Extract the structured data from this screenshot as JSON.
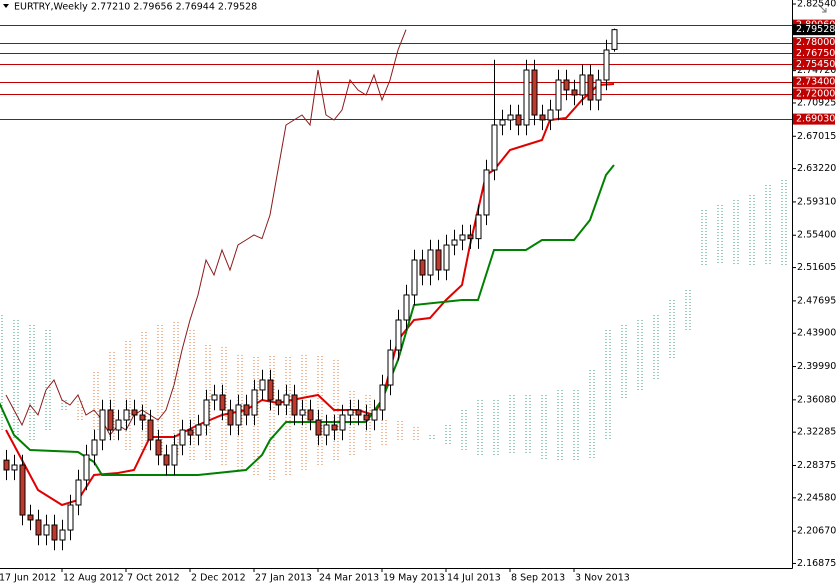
{
  "chart_data": {
    "type": "candlestick",
    "symbol": "EURTRY,Weekly",
    "ohlc": "2.77210 2.79656 2.76944 2.79528",
    "xlim": [
      0.25,
      99.25
    ],
    "ylim": [
      2.16343,
      2.83009
    ],
    "xticks": [
      {
        "value": 0,
        "label": "17 Jun 2012"
      },
      {
        "value": 8,
        "label": "12 Aug 2012"
      },
      {
        "value": 16,
        "label": "7 Oct 2012"
      },
      {
        "value": 24,
        "label": "2 Dec 2012"
      },
      {
        "value": 32,
        "label": "27 Jan 2013"
      },
      {
        "value": 40,
        "label": "24 Mar 2013"
      },
      {
        "value": 48,
        "label": "19 May 2013"
      },
      {
        "value": 56,
        "label": "14 Jul 2013"
      },
      {
        "value": 64,
        "label": "8 Sep 2013"
      },
      {
        "value": 72,
        "label": "3 Nov 2013"
      }
    ],
    "yticks": [
      {
        "value": 2.8254,
        "label": "2.82540"
      },
      {
        "value": 2.7472,
        "label": "2.74720"
      },
      2.70925,
      2.67015,
      {
        "value": 2.6322,
        "label": "2.63220"
      },
      {
        "value": 2.5931,
        "label": "2.59310"
      },
      {
        "value": 2.554,
        "label": "2.55400"
      },
      2.51605,
      2.47695,
      {
        "value": 2.439,
        "label": "2.43900"
      },
      {
        "value": 2.3999,
        "label": "2.39990"
      },
      {
        "value": 2.3608,
        "label": "2.36080"
      },
      2.32285,
      2.28375,
      {
        "value": 2.2458,
        "label": "2.24580"
      },
      {
        "value": 2.2067,
        "label": "2.20670"
      },
      2.16875
    ],
    "up_color": "#ffffff",
    "down_color": "#c0392b",
    "outline_color": "#000000",
    "x": [
      1,
      2,
      3,
      4,
      5,
      6,
      7,
      8,
      9,
      10,
      11,
      12,
      13,
      14,
      15,
      16,
      17,
      18,
      19,
      20,
      21,
      22,
      23,
      24,
      25,
      26,
      27,
      28,
      29,
      30,
      31,
      32,
      33,
      34,
      35,
      36,
      37,
      38,
      39,
      40,
      41,
      42,
      43,
      44,
      45,
      46,
      47,
      48,
      49,
      50,
      51,
      52,
      53,
      54,
      55,
      56,
      57,
      58,
      59,
      60,
      61,
      62,
      63,
      64,
      65,
      66,
      67,
      68,
      69,
      70,
      71,
      72,
      73,
      74,
      75,
      76,
      77
    ],
    "open": [
      2.29,
      2.2785,
      2.2843,
      2.2256,
      2.2198,
      2.2022,
      2.2139,
      2.1963,
      2.208,
      2.2374,
      2.2667,
      2.2961,
      2.3137,
      2.3489,
      2.3254,
      2.3371,
      2.3489,
      2.343,
      2.3371,
      2.3137,
      2.2961,
      2.2843,
      2.3078,
      2.3254,
      2.3195,
      2.3313,
      2.3606,
      2.3665,
      2.3489,
      2.3313,
      2.3548,
      2.343,
      2.3724,
      2.3841,
      2.3606,
      2.3548,
      2.3665,
      2.343,
      2.3489,
      2.3371,
      2.3195,
      2.3313,
      2.3254,
      2.343,
      2.3489,
      2.343,
      2.3371,
      2.3489,
      2.3782,
      2.4193,
      2.4545,
      2.4839,
      2.5249,
      2.5073,
      2.5367,
      2.5132,
      2.5425,
      2.5484,
      2.5543,
      2.55,
      2.5778,
      2.6306,
      2.6834,
      2.6893,
      2.6951,
      2.6834,
      2.7479,
      2.6951,
      2.6893,
      2.701,
      2.7362,
      2.7245,
      2.7186,
      2.7421,
      2.7127,
      2.7362,
      2.7721
    ],
    "high": [
      2.302,
      2.2963,
      2.2963,
      2.2376,
      2.2318,
      2.2259,
      2.2259,
      2.22,
      2.2494,
      2.2787,
      2.3081,
      2.3257,
      2.3609,
      2.3609,
      2.3491,
      2.3609,
      2.3609,
      2.355,
      2.3491,
      2.3257,
      2.3081,
      2.3198,
      2.3374,
      2.3374,
      2.3433,
      2.3726,
      2.3785,
      2.3785,
      2.3609,
      2.3668,
      2.3668,
      2.3844,
      2.3961,
      2.3961,
      2.3726,
      2.3785,
      2.3785,
      2.3609,
      2.3609,
      2.3491,
      2.3433,
      2.3433,
      2.355,
      2.3609,
      2.3609,
      2.355,
      2.3609,
      2.3902,
      2.4313,
      2.4665,
      2.4959,
      2.5369,
      2.5369,
      2.5487,
      2.5487,
      2.5545,
      2.5604,
      2.5663,
      2.5663,
      2.5898,
      2.6426,
      2.76,
      2.7013,
      2.7071,
      2.7071,
      2.7599,
      2.7599,
      2.7071,
      2.713,
      2.7482,
      2.7482,
      2.7365,
      2.7541,
      2.7541,
      2.7482,
      2.7834,
      2.79656
    ],
    "low": [
      2.2665,
      2.2665,
      2.2136,
      2.2078,
      2.1902,
      2.1902,
      2.1843,
      2.1843,
      2.196,
      2.2254,
      2.2547,
      2.2841,
      2.3017,
      2.3134,
      2.3134,
      2.3251,
      2.331,
      2.3251,
      2.3017,
      2.2841,
      2.2723,
      2.2723,
      2.2958,
      2.3075,
      2.3075,
      2.3193,
      2.3486,
      2.3369,
      2.3193,
      2.3193,
      2.331,
      2.331,
      2.3604,
      2.3486,
      2.3428,
      2.3428,
      2.331,
      2.331,
      2.3251,
      2.3075,
      2.3075,
      2.3134,
      2.3134,
      2.331,
      2.331,
      2.3251,
      2.3251,
      2.3369,
      2.3662,
      2.4073,
      2.4425,
      2.4719,
      2.4953,
      2.4953,
      2.5012,
      2.5012,
      2.5305,
      2.5364,
      2.538,
      2.538,
      2.5658,
      2.6186,
      2.6714,
      2.6773,
      2.6714,
      2.6714,
      2.6831,
      2.6773,
      2.6773,
      2.689,
      2.7125,
      2.7066,
      2.7066,
      2.7007,
      2.7007,
      2.7242,
      2.76944
    ],
    "close": [
      2.2785,
      2.2843,
      2.2256,
      2.2198,
      2.2022,
      2.2139,
      2.1963,
      2.208,
      2.2374,
      2.2667,
      2.2961,
      2.3137,
      2.3489,
      2.3254,
      2.3371,
      2.3489,
      2.343,
      2.3371,
      2.3137,
      2.2961,
      2.2843,
      2.3078,
      2.3254,
      2.3195,
      2.3313,
      2.3606,
      2.3665,
      2.3489,
      2.3313,
      2.3548,
      2.343,
      2.3724,
      2.3841,
      2.3606,
      2.3548,
      2.3665,
      2.343,
      2.3489,
      2.3371,
      2.3195,
      2.3313,
      2.3254,
      2.343,
      2.3489,
      2.343,
      2.3371,
      2.3489,
      2.3782,
      2.4193,
      2.4545,
      2.4839,
      2.5249,
      2.5073,
      2.5367,
      2.5132,
      2.5425,
      2.5484,
      2.5543,
      2.55,
      2.5778,
      2.6306,
      2.6834,
      2.6893,
      2.6951,
      2.6834,
      2.7479,
      2.6951,
      2.6893,
      2.701,
      2.7362,
      2.7245,
      2.7186,
      2.7421,
      2.7127,
      2.7362,
      2.7714,
      2.79528
    ],
    "cloud": {
      "up_color": "#3a9a7a",
      "down_color": "#e07a3a",
      "x": [
        0,
        2,
        4,
        6,
        8,
        10,
        12,
        14,
        16,
        18,
        20,
        22,
        24,
        26,
        28,
        30,
        32,
        34,
        36,
        38,
        40,
        42,
        44,
        46,
        48,
        50,
        52,
        54,
        56,
        58,
        60,
        62,
        64,
        66,
        68,
        70,
        72,
        74,
        76,
        78,
        80,
        82,
        84,
        86,
        88,
        90,
        92,
        94,
        96,
        98
      ],
      "span_a": [
        2.4604,
        2.4545,
        2.4486,
        2.4428,
        2.3606,
        2.3371,
        2.3254,
        2.3137,
        2.3019,
        2.3019,
        2.2961,
        2.2961,
        2.2902,
        2.2902,
        2.2843,
        2.2785,
        2.2726,
        2.2667,
        2.2726,
        2.2785,
        2.2843,
        2.2902,
        2.2961,
        2.3019,
        2.3078,
        2.3137,
        2.3137,
        2.3195,
        2.3313,
        2.3489,
        2.3606,
        2.3606,
        2.3665,
        2.3665,
        2.3665,
        2.3724,
        2.3724,
        2.3958,
        2.4428,
        2.4486,
        2.4545,
        2.4604,
        2.478,
        2.4897,
        2.5836,
        2.5895,
        2.5954,
        2.6012,
        2.613,
        2.6188
      ],
      "span_b": [
        2.3254,
        2.3137,
        2.3137,
        2.3254,
        2.3489,
        2.3606,
        2.3958,
        2.4193,
        2.431,
        2.4428,
        2.4486,
        2.4545,
        2.4428,
        2.4252,
        2.4252,
        2.4134,
        2.4134,
        2.4134,
        2.4134,
        2.4134,
        2.4134,
        2.4076,
        2.3724,
        2.3665,
        2.3371,
        2.3371,
        2.3313,
        2.3137,
        2.3078,
        2.3019,
        2.2961,
        2.2961,
        2.2961,
        2.2961,
        2.2902,
        2.2902,
        2.2902,
        2.2902,
        2.3137,
        2.3606,
        2.3724,
        2.3841,
        2.4076,
        2.4428,
        2.5191,
        2.5191,
        2.5191,
        2.5191,
        2.5191,
        2.5191
      ]
    },
    "lines": [
      {
        "color": "#8b1a1a",
        "width": 1,
        "x": [
          1,
          2,
          3,
          4,
          5,
          6,
          7,
          8,
          9,
          10,
          11,
          12,
          13,
          14,
          15,
          16,
          17,
          18,
          19,
          20,
          21,
          22,
          23,
          24,
          25,
          26,
          27,
          28,
          29,
          30,
          31,
          32,
          33,
          34,
          35,
          36,
          37,
          38,
          39,
          40,
          41,
          42,
          43,
          44,
          45,
          46,
          47,
          48,
          49,
          50,
          51
        ],
        "values": [
          2.3665,
          2.3489,
          2.3313,
          2.3548,
          2.343,
          2.3724,
          2.3841,
          2.3606,
          2.3548,
          2.3665,
          2.343,
          2.3489,
          2.3371,
          2.3195,
          2.3313,
          2.3254,
          2.343,
          2.3489,
          2.343,
          2.3371,
          2.3489,
          2.3782,
          2.4193,
          2.4545,
          2.4839,
          2.5249,
          2.5073,
          2.5367,
          2.5132,
          2.5425,
          2.5484,
          2.5543,
          2.55,
          2.5778,
          2.6306,
          2.6834,
          2.6893,
          2.6951,
          2.6834,
          2.7479,
          2.6951,
          2.6893,
          2.701,
          2.7362,
          2.7245,
          2.7186,
          2.7421,
          2.7127,
          2.7362,
          2.7714,
          2.79528
        ]
      },
      {
        "color": "#e00000",
        "width": 2,
        "x": [
          1,
          3,
          5,
          8,
          10,
          12,
          15,
          17,
          19,
          22,
          25,
          28,
          31,
          33,
          35,
          38,
          40,
          42,
          45,
          47,
          48,
          49,
          50,
          52,
          54,
          56,
          58,
          59,
          61,
          62,
          64,
          66,
          68,
          69,
          71,
          73,
          75,
          77
        ],
        "values": [
          2.3254,
          2.2902,
          2.255,
          2.2374,
          2.2432,
          2.2726,
          2.2749,
          2.2785,
          2.3172,
          2.3172,
          2.3313,
          2.343,
          2.3489,
          2.3606,
          2.3571,
          2.363,
          2.3665,
          2.3489,
          2.3489,
          2.343,
          2.3606,
          2.3958,
          2.431,
          2.4545,
          2.4569,
          2.478,
          2.4956,
          2.5425,
          2.6247,
          2.6306,
          2.654,
          2.6599,
          2.6658,
          2.6893,
          2.6916,
          2.7127,
          2.7303,
          2.7315
        ]
      },
      {
        "color": "#008000",
        "width": 2,
        "x": [
          0,
          2,
          4,
          10,
          12,
          13,
          25,
          31,
          33,
          34,
          36,
          46,
          48,
          50,
          52,
          58,
          60,
          62,
          66,
          68,
          72,
          74,
          76,
          77
        ],
        "values": [
          2.3606,
          2.3195,
          2.3019,
          2.2996,
          2.2879,
          2.2726,
          2.2726,
          2.2785,
          2.2961,
          2.3137,
          2.3348,
          2.3348,
          2.3606,
          2.4076,
          2.4721,
          2.478,
          2.478,
          2.5367,
          2.5367,
          2.5484,
          2.5484,
          2.5719,
          2.6247,
          2.6364
        ]
      }
    ],
    "level_color": "#c00000",
    "levels": [
      {
        "value": 2.8006,
        "label": "2.80060"
      },
      {
        "value": 2.78,
        "label": "2.78000"
      },
      {
        "value": 2.7675,
        "label": "2.76750"
      },
      {
        "value": 2.7545,
        "label": "2.75450"
      },
      {
        "value": 2.734,
        "label": "2.73400"
      },
      {
        "value": 2.72,
        "label": "2.72000"
      },
      {
        "value": 2.6903,
        "label": "2.69030"
      }
    ],
    "last_price": 2.79528
  }
}
